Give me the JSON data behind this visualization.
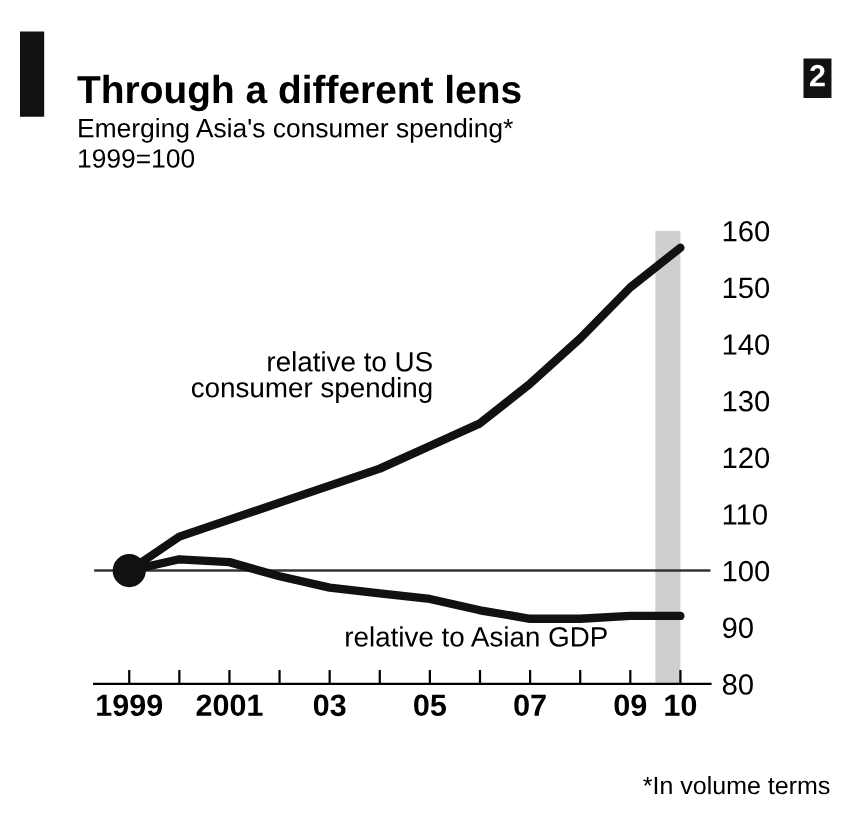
{
  "chart_data": {
    "type": "line",
    "title": "Through a different lens",
    "subtitle": "Emerging Asia's consumer spending*\n1999=100",
    "x": [
      1999,
      2000,
      2001,
      2002,
      2003,
      2004,
      2005,
      2006,
      2007,
      2008,
      2009,
      2010
    ],
    "series": [
      {
        "name": "relative to US\nconsumer spending",
        "color": "#111111",
        "values": [
          100,
          106,
          109,
          112,
          115,
          118,
          122,
          126,
          133,
          141,
          150,
          157
        ]
      },
      {
        "name": "relative to Asian GDP",
        "color": "#111111",
        "values": [
          100,
          102,
          101.5,
          99,
          97,
          96,
          95,
          93,
          91.5,
          91.5,
          92,
          92
        ]
      },
      {
        "type": "scatter",
        "color": "#111111",
        "x": [
          1999
        ],
        "values": [
          100
        ]
      }
    ],
    "xlim": [
      1998.3,
      2010.6
    ],
    "ylim": [
      80,
      160
    ],
    "xticks": [
      1999,
      {
        "value": 2000,
        "label": null
      },
      2001,
      {
        "value": 2002,
        "label": null
      },
      {
        "value": 2003,
        "label": "03"
      },
      {
        "value": 2004,
        "label": null
      },
      {
        "value": 2005,
        "label": "05"
      },
      {
        "value": 2006,
        "label": null
      },
      {
        "value": 2007,
        "label": "07"
      },
      {
        "value": 2008,
        "label": null
      },
      {
        "value": 2009,
        "label": "09"
      },
      {
        "value": 2010,
        "label": "10"
      }
    ],
    "yticks": [
      80,
      90,
      100,
      110,
      120,
      130,
      140,
      150,
      160
    ],
    "ref_lines": [
      {
        "axis": "y",
        "value": 100,
        "color": "#333333"
      }
    ],
    "bands": [
      {
        "axis": "x",
        "from": 2009.5,
        "to": 2010,
        "color": "#bbbbbb"
      }
    ],
    "annotations": [
      "2",
      "*In volume terms"
    ],
    "grid": false,
    "legend": false
  }
}
